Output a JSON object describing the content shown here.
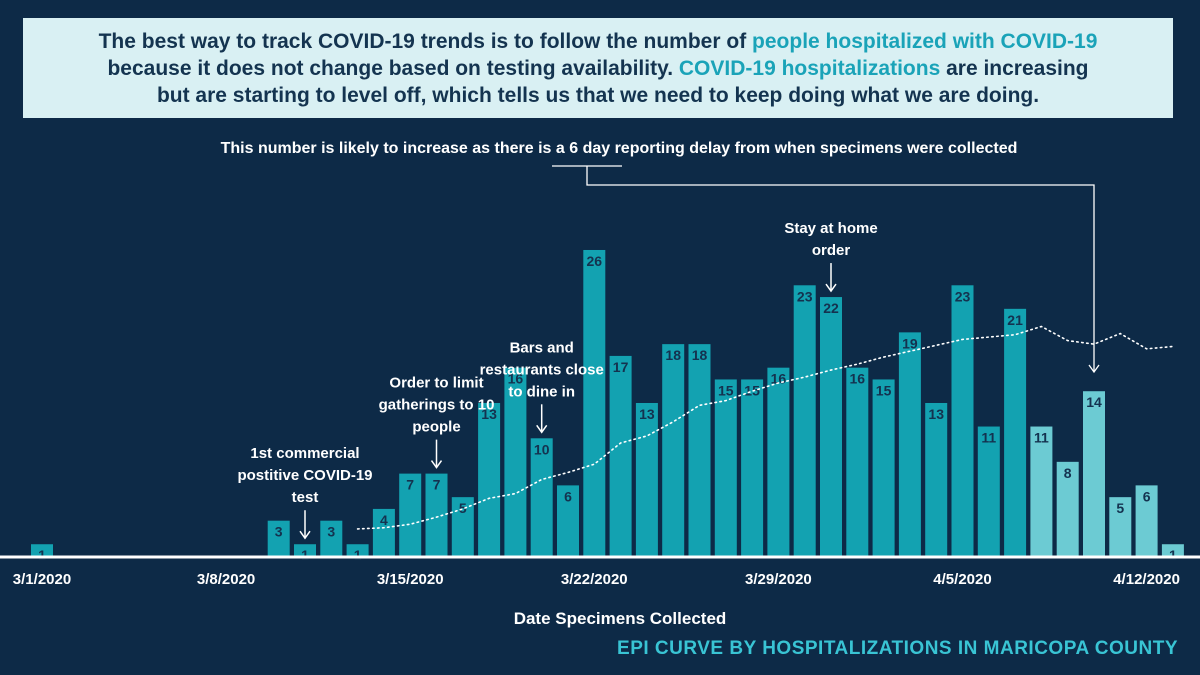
{
  "banner": {
    "line1_a": "The best way to track COVID-19 trends is to follow the number of ",
    "line1_b": "people hospitalized with COVID-19",
    "line2_a": "because it does not change based on testing availability. ",
    "line2_b": "COVID-19 hospitalizations",
    "line2_c": " are increasing",
    "line3": "but are starting to level off, which tells us that we need to keep doing what we are doing."
  },
  "footer_title": "EPI CURVE BY HOSPITALIZATIONS IN MARICOPA COUNTY",
  "colors": {
    "background": "#0d2a47",
    "bar": "#13a2b1",
    "bar_delayed": "#6ccbd3",
    "bar_label": "#14324f",
    "highlight": "#1aa3b8"
  },
  "chart_data": {
    "type": "bar",
    "xlabel": "Date Specimens Collected",
    "ylabel": "",
    "ylim": [
      0,
      28
    ],
    "dates": [
      "3/1/2020",
      "3/2/2020",
      "3/3/2020",
      "3/4/2020",
      "3/5/2020",
      "3/6/2020",
      "3/7/2020",
      "3/8/2020",
      "3/9/2020",
      "3/10/2020",
      "3/11/2020",
      "3/12/2020",
      "3/13/2020",
      "3/14/2020",
      "3/15/2020",
      "3/16/2020",
      "3/17/2020",
      "3/18/2020",
      "3/19/2020",
      "3/20/2020",
      "3/21/2020",
      "3/22/2020",
      "3/23/2020",
      "3/24/2020",
      "3/25/2020",
      "3/26/2020",
      "3/27/2020",
      "3/28/2020",
      "3/29/2020",
      "3/30/2020",
      "3/31/2020",
      "4/1/2020",
      "4/2/2020",
      "4/3/2020",
      "4/4/2020",
      "4/5/2020",
      "4/6/2020",
      "4/7/2020",
      "4/8/2020",
      "4/9/2020",
      "4/10/2020",
      "4/11/2020",
      "4/12/2020",
      "4/13/2020"
    ],
    "values": [
      1,
      0,
      0,
      0,
      0,
      0,
      0,
      0,
      0,
      3,
      1,
      3,
      1,
      4,
      7,
      7,
      5,
      13,
      16,
      10,
      6,
      26,
      17,
      13,
      18,
      18,
      15,
      15,
      16,
      23,
      22,
      16,
      15,
      19,
      13,
      23,
      11,
      21,
      11,
      8,
      14,
      5,
      6,
      1
    ],
    "delayed_from_index": 38,
    "x_tick_labels": [
      "3/1/2020",
      "3/8/2020",
      "3/15/2020",
      "3/22/2020",
      "3/29/2020",
      "4/5/2020",
      "4/12/2020"
    ],
    "delay_note": "This number is likely to increase as there is a 6 day reporting delay from when specimens were collected",
    "moving_average": {
      "style": "dotted",
      "values": [
        2.3,
        2.4,
        2.7,
        3.3,
        4.0,
        4.9,
        5.3,
        6.5,
        7.1,
        7.8,
        9.6,
        10.2,
        11.4,
        12.8,
        13.2,
        14.0,
        14.7,
        15.2,
        15.8,
        16.3,
        16.9,
        17.4,
        17.9,
        18.4,
        18.6,
        18.8,
        19.5,
        18.3,
        18.0,
        18.9,
        17.6,
        17.8
      ]
    },
    "annotations": [
      {
        "date_index": 10,
        "text": [
          "1st commercial",
          "postitive COVID-19",
          "test"
        ]
      },
      {
        "date_index": 15,
        "text": [
          "Order to limit",
          "gatherings to 10",
          "people"
        ]
      },
      {
        "date_index": 19,
        "text": [
          "Bars and",
          "restaurants close",
          "to dine in"
        ]
      },
      {
        "date_index": 30,
        "text": [
          "Stay at home",
          "order"
        ]
      }
    ]
  }
}
